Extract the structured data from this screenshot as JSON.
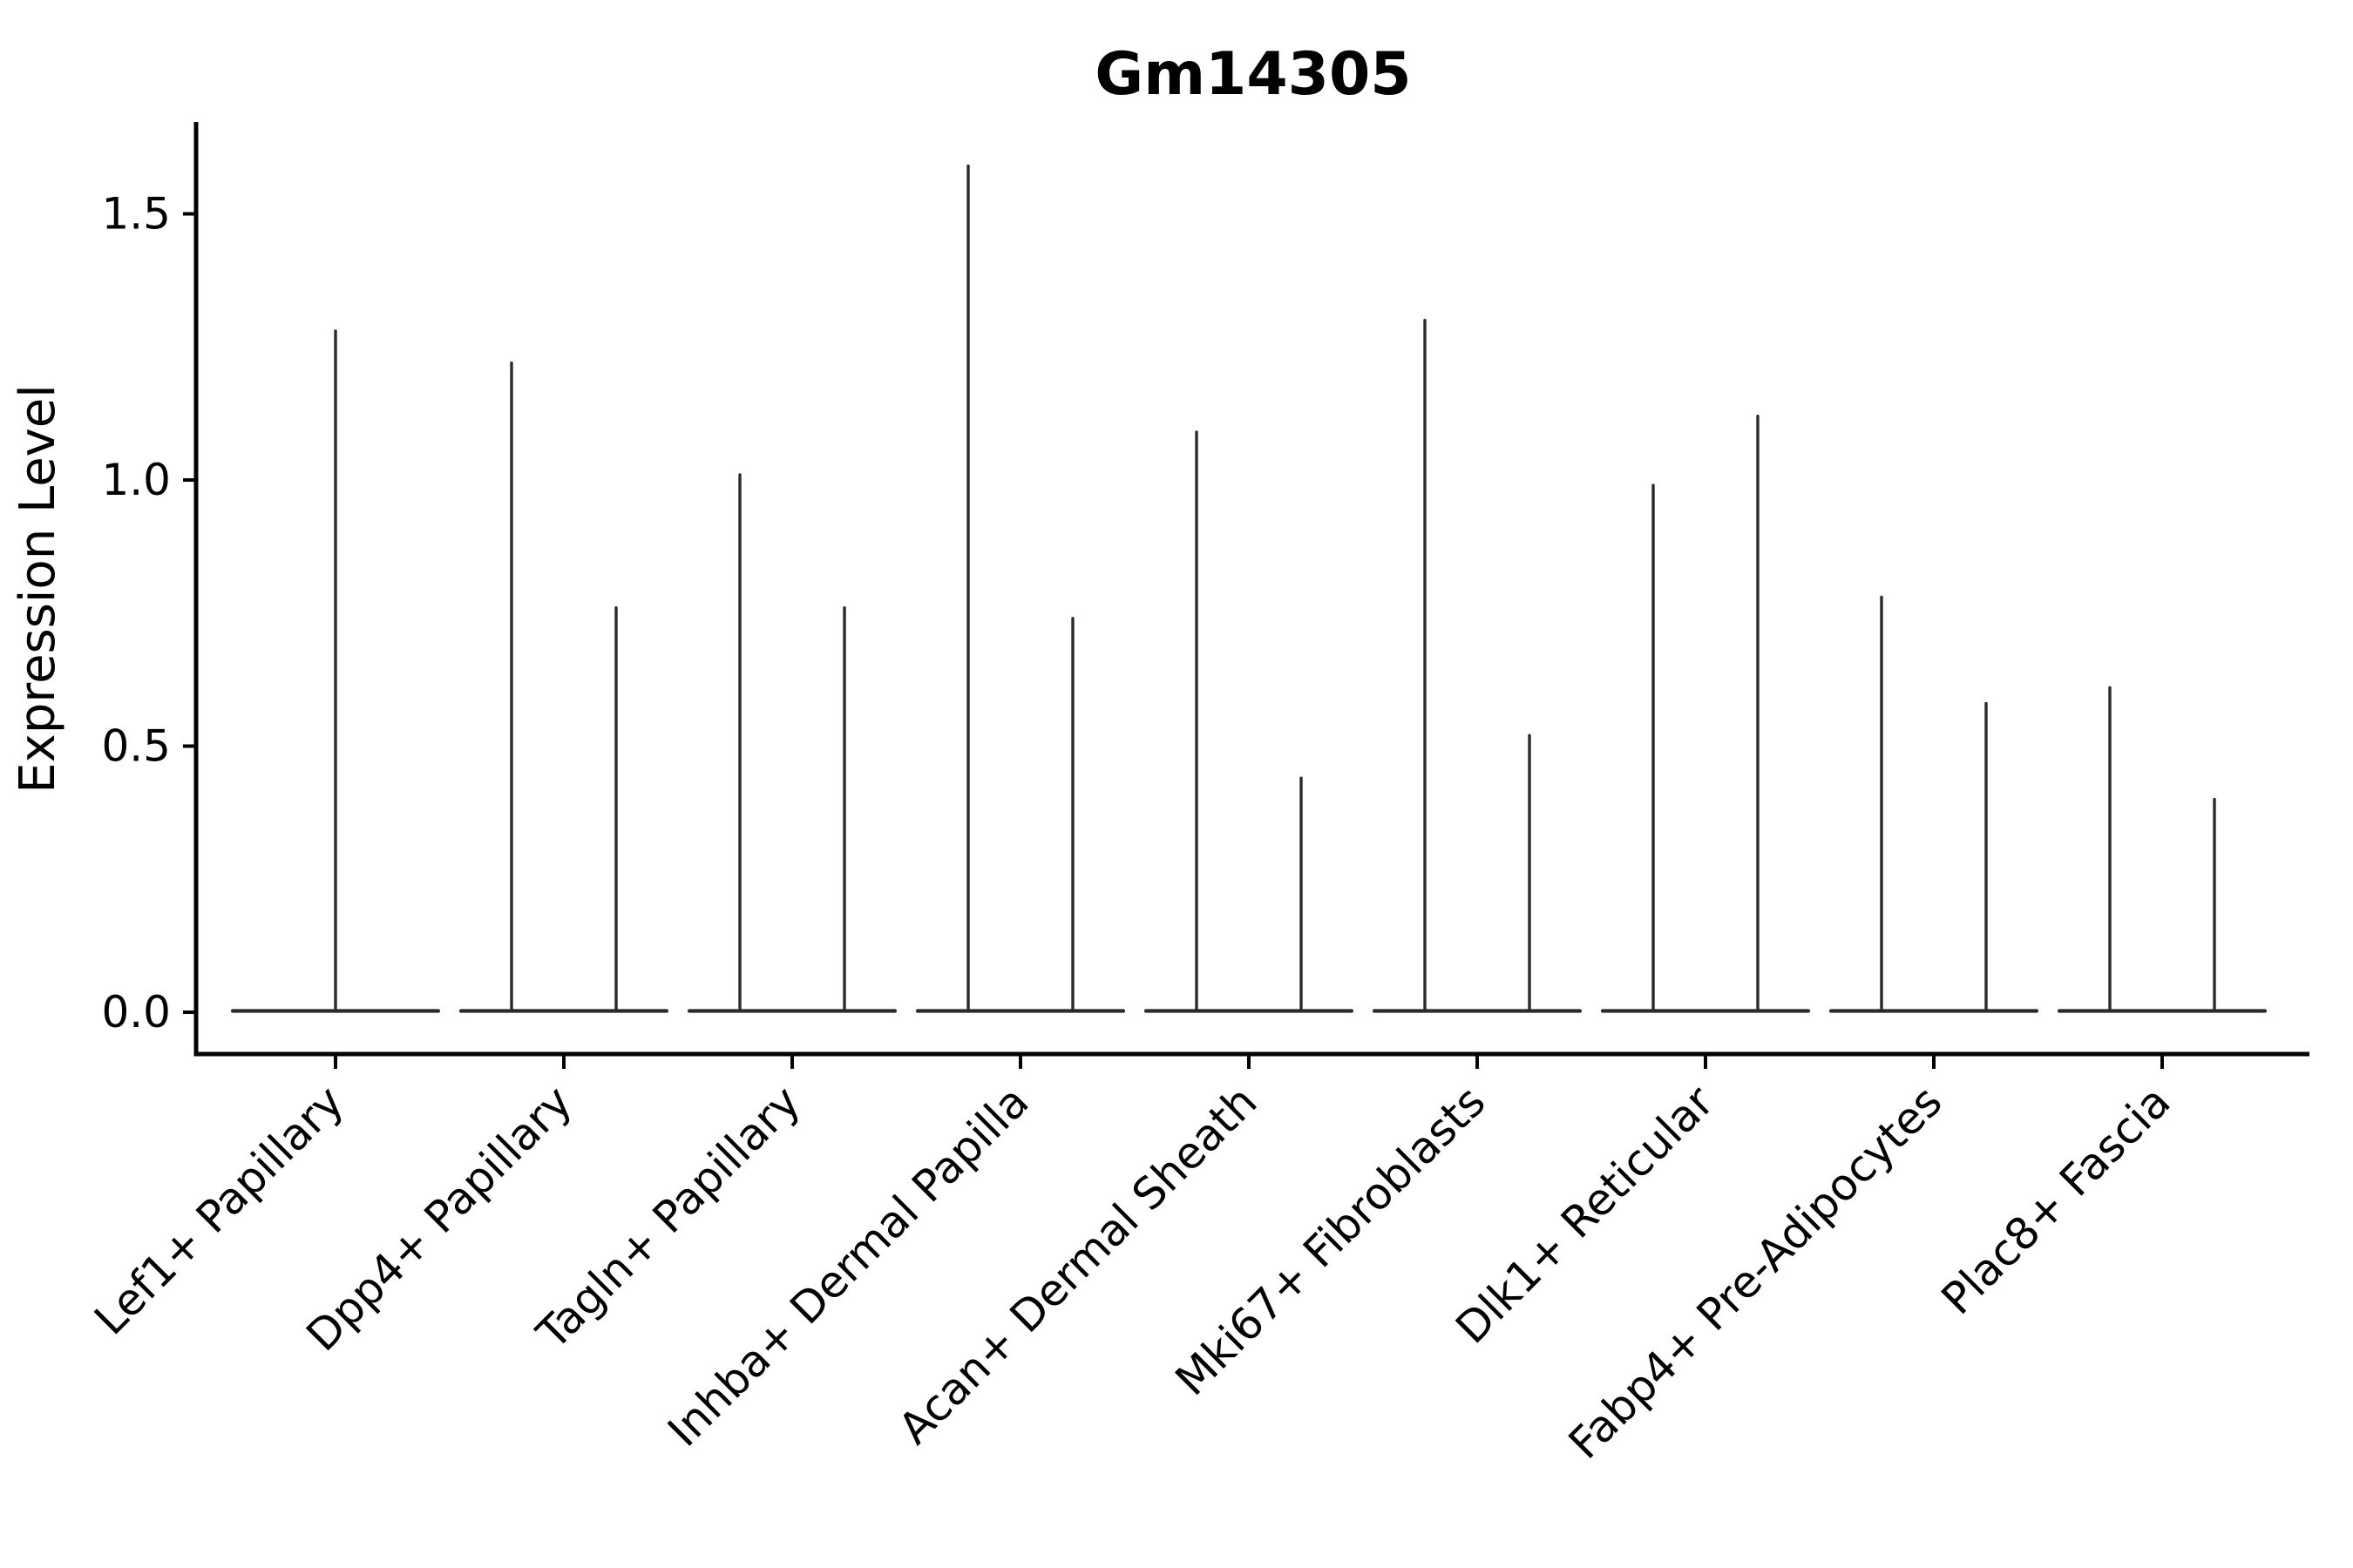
{
  "figure": {
    "title": "Gm14305",
    "y_axis_label": "Expression Level"
  },
  "chart_data": {
    "type": "violin",
    "title": "Gm14305",
    "xlabel": "",
    "ylabel": "Expression Level",
    "ylim": [
      -0.08,
      1.67
    ],
    "yticks_labels": [
      "0.0",
      "0.5",
      "1.0",
      "1.5"
    ],
    "ytick_values": [
      0.0,
      0.5,
      1.0,
      1.5
    ],
    "grid": false,
    "legend": "none",
    "background_color": "#ffffff",
    "axis_color": "#000000",
    "line_color": "#2a2a2a",
    "categories": [
      "Lef1+ Papillary",
      "Dpp4+ Papillary",
      "Tagln+ Papillary",
      "Inhba+ Dermal Papilla",
      "Acan+ Dermal Sheath",
      "Mki67+ Fibroblasts",
      "Dlk1+ Reticular",
      "Fabp4+ Pre-Adipocytes",
      "Plac8+ Fascia"
    ],
    "series": [
      {
        "category": "Lef1+ Papillary",
        "violin_max_expression": [
          1.28
        ]
      },
      {
        "category": "Dpp4+ Papillary",
        "violin_max_expression": [
          1.22,
          0.76
        ]
      },
      {
        "category": "Tagln+ Papillary",
        "violin_max_expression": [
          1.01,
          0.76
        ]
      },
      {
        "category": "Inhba+ Dermal Papilla",
        "violin_max_expression": [
          1.59,
          0.74
        ]
      },
      {
        "category": "Acan+ Dermal Sheath",
        "violin_max_expression": [
          1.09,
          0.44
        ]
      },
      {
        "category": "Mki67+ Fibroblasts",
        "violin_max_expression": [
          1.3,
          0.52
        ]
      },
      {
        "category": "Dlk1+ Reticular",
        "violin_max_expression": [
          0.99,
          1.12
        ]
      },
      {
        "category": "Fabp4+ Pre-Adipocytes",
        "violin_max_expression": [
          0.78,
          0.58
        ]
      },
      {
        "category": "Plac8+ Fascia",
        "violin_max_expression": [
          0.61,
          0.4
        ]
      }
    ],
    "distribution_note": "Each violin is a flat wide base at expression 0 with a single thin density spike rising to the max expression value; categories with two violins show two spikes side by side"
  }
}
